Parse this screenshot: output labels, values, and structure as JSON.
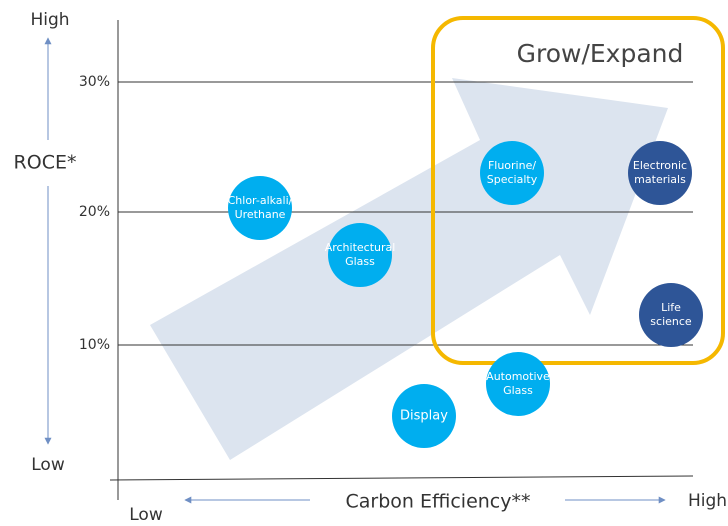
{
  "y_axis": {
    "title": "ROCE*",
    "high": "High",
    "low": "Low",
    "ticks": [
      "30%",
      "20%",
      "10%"
    ]
  },
  "x_axis": {
    "title": "Carbon Efficiency**",
    "low": "Low",
    "high": "High"
  },
  "region_label": "Grow/Expand",
  "nodes": [
    {
      "label": [
        "Chlor-alkali/",
        "Urethane"
      ]
    },
    {
      "label": [
        "Architectural",
        "Glass"
      ]
    },
    {
      "label": [
        "Fluorine/",
        "Specialty"
      ]
    },
    {
      "label": [
        "Electronic",
        "materials"
      ]
    },
    {
      "label": [
        "Life",
        "science"
      ]
    },
    {
      "label": [
        "Automotive",
        "Glass"
      ]
    },
    {
      "label": [
        "Display"
      ]
    }
  ]
}
